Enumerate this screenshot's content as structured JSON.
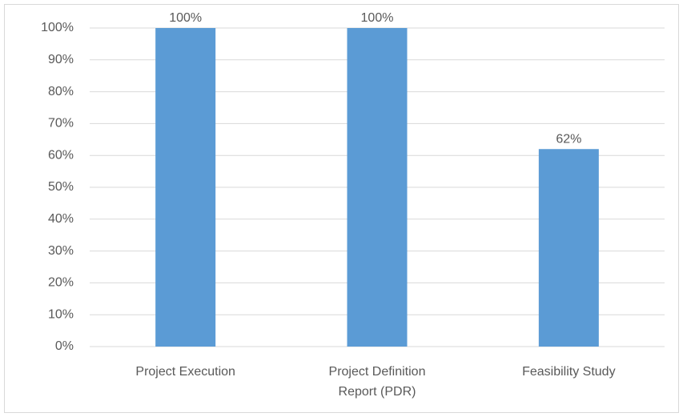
{
  "chart_data": {
    "type": "bar",
    "categories": [
      "Project Execution",
      "Project Definition Report (PDR)",
      "Feasibility Study"
    ],
    "values": [
      100,
      100,
      62
    ],
    "value_labels": [
      "100%",
      "100%",
      "62%"
    ],
    "color": "#5b9bd5",
    "ylim": [
      0,
      100
    ],
    "yticks": [
      {
        "value": 0,
        "label": "0%"
      },
      {
        "value": 10,
        "label": "10%"
      },
      {
        "value": 20,
        "label": "20%"
      },
      {
        "value": 30,
        "label": "30%"
      },
      {
        "value": 40,
        "label": "40%"
      },
      {
        "value": 50,
        "label": "50%"
      },
      {
        "value": 60,
        "label": "60%"
      },
      {
        "value": 70,
        "label": "70%"
      },
      {
        "value": 80,
        "label": "80%"
      },
      {
        "value": 90,
        "label": "90%"
      },
      {
        "value": 100,
        "label": "100%"
      }
    ],
    "grid": true
  }
}
